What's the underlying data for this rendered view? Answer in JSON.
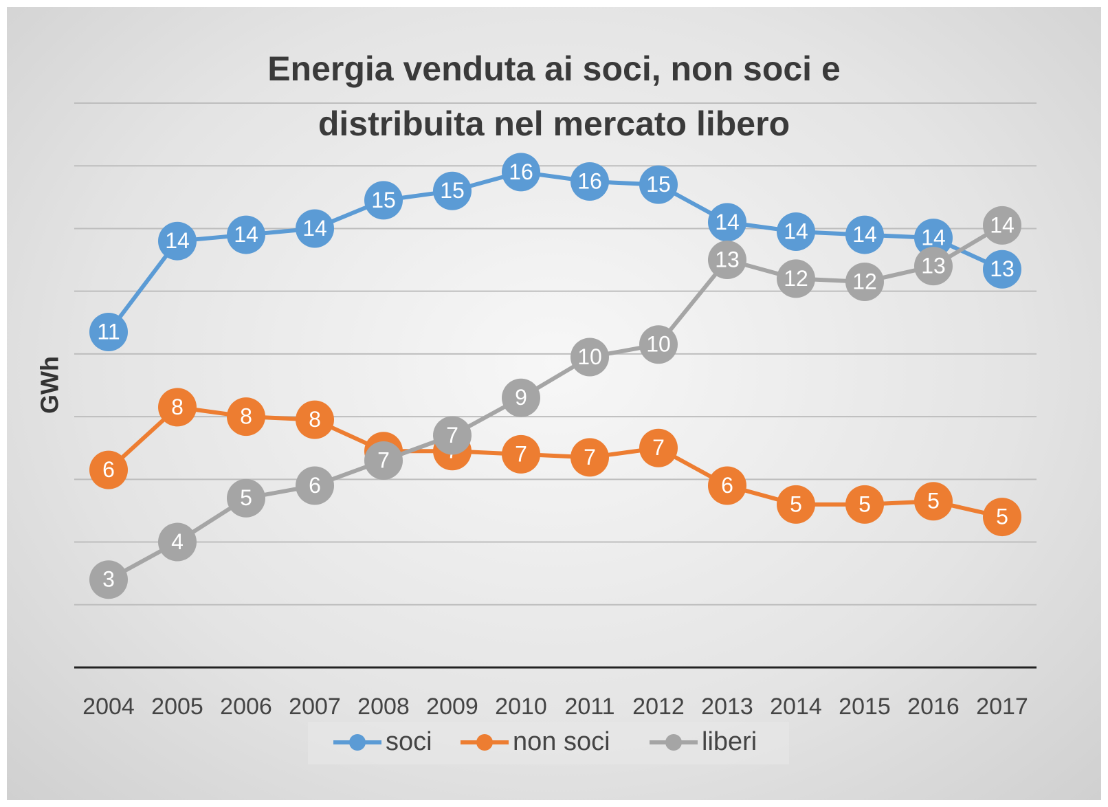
{
  "chart_data": {
    "type": "line",
    "title": "Energia venduta ai soci, non soci e distribuita nel mercato libero",
    "y_label": "GWh",
    "categories": [
      "2004",
      "2005",
      "2006",
      "2007",
      "2008",
      "2009",
      "2010",
      "2011",
      "2012",
      "2013",
      "2014",
      "2015",
      "2016",
      "2017"
    ],
    "series": [
      {
        "name": "soci",
        "color": "#5b9bd5",
        "values": [
          10.7,
          13.6,
          13.8,
          14.0,
          14.9,
          15.2,
          15.8,
          15.5,
          15.4,
          14.2,
          13.9,
          13.8,
          13.7,
          12.7
        ],
        "value_labels": [
          "11",
          "14",
          "14",
          "14",
          "15",
          "15",
          "16",
          "16",
          "15",
          "14",
          "14",
          "14",
          "14",
          "13"
        ]
      },
      {
        "name": "non soci",
        "color": "#ed7d31",
        "values": [
          6.3,
          8.3,
          8.0,
          7.9,
          6.9,
          6.9,
          6.8,
          6.7,
          7.0,
          5.8,
          5.2,
          5.2,
          5.3,
          4.8
        ],
        "value_labels": [
          "6",
          "8",
          "8",
          "8",
          "7",
          "7",
          "7",
          "7",
          "7",
          "6",
          "5",
          "5",
          "5",
          "5"
        ]
      },
      {
        "name": "liberi",
        "color": "#a5a5a5",
        "values": [
          2.8,
          4.0,
          5.4,
          5.8,
          6.6,
          7.4,
          8.6,
          9.9,
          10.3,
          13.0,
          12.4,
          12.3,
          12.8,
          14.1
        ],
        "value_labels": [
          "3",
          "4",
          "5",
          "6",
          "7",
          "7",
          "9",
          "10",
          "10",
          "13",
          "12",
          "12",
          "13",
          "14"
        ]
      }
    ],
    "ylim": [
      0,
      18
    ],
    "yticks": [
      0,
      2,
      4,
      6,
      8,
      10,
      12,
      14,
      16,
      18
    ],
    "grid": true,
    "legend": "bottom"
  }
}
